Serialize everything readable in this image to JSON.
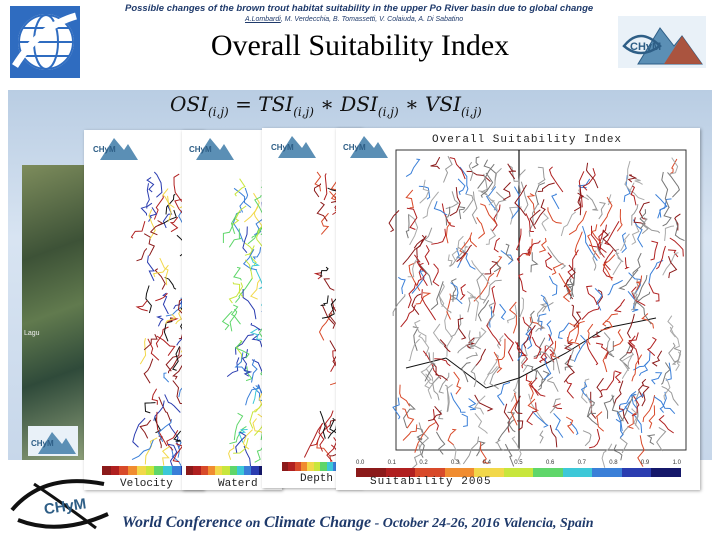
{
  "header": {
    "line1": "Possible changes of the brown trout habitat suitability in the upper Po River basin due to global change",
    "authors_underlined": "A.Lombardi",
    "authors_rest": ", M. Verdecchia, B. Tomassetti, V. Colaiuda, A. Di Sabatino",
    "title": "Overall Suitability Index"
  },
  "formula": {
    "osi": "OSI",
    "tsi": "TSI",
    "dsi": "DSI",
    "vsi": "VSI",
    "sub": "(i,j)",
    "eq": "=",
    "mul": "∗"
  },
  "satellite_label": "Lagu",
  "panels": [
    {
      "label": "Velocity"
    },
    {
      "label": "Waterd"
    },
    {
      "label": "Depth"
    },
    {
      "label": "Suitability 2005",
      "title": "Overall Suitability Index"
    }
  ],
  "colorbar_ticks": [
    "0.0",
    "0.1",
    "0.2",
    "0.3",
    "0.4",
    "0.5",
    "0.6",
    "0.7",
    "0.8",
    "0.9",
    "1.0"
  ],
  "colors": {
    "brand": "#1f3a6b",
    "scale": [
      "#8b1a1a",
      "#b02020",
      "#d84a2a",
      "#f08c30",
      "#f2d84a",
      "#c8e63c",
      "#5fd66a",
      "#3cc8d8",
      "#3a7fd8",
      "#2a3cb0",
      "#15186a"
    ]
  },
  "footer": {
    "conference": "World Conference",
    "on": "on",
    "topic": "Climate Change",
    "dates": "- October 24-26, 2016",
    "place": "Valencia, Spain"
  }
}
